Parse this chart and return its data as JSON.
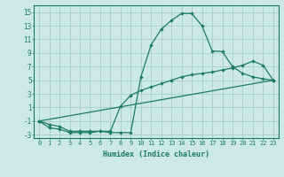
{
  "xlabel": "Humidex (Indice chaleur)",
  "bg_color": "#cce8e8",
  "grid_color": "#aacccc",
  "line_color": "#1a7a6a",
  "xlim": [
    -0.5,
    23.5
  ],
  "ylim": [
    -3.5,
    16.0
  ],
  "xticks": [
    0,
    1,
    2,
    3,
    4,
    5,
    6,
    7,
    8,
    9,
    10,
    11,
    12,
    13,
    14,
    15,
    16,
    17,
    18,
    19,
    20,
    21,
    22,
    23
  ],
  "yticks": [
    -3,
    -1,
    1,
    3,
    5,
    7,
    9,
    11,
    13,
    15
  ],
  "line1_x": [
    0,
    1,
    2,
    3,
    4,
    5,
    6,
    7,
    8,
    9,
    10,
    11,
    12,
    13,
    14,
    15,
    16,
    17,
    18,
    19,
    20,
    21,
    22,
    23
  ],
  "line1_y": [
    -1,
    -2,
    -2.2,
    -2.7,
    -2.7,
    -2.7,
    -2.5,
    -2.7,
    -2.7,
    -2.7,
    5.5,
    10.2,
    12.5,
    13.8,
    14.8,
    14.8,
    13.0,
    9.3,
    9.2,
    7.0,
    6.0,
    5.5,
    5.2,
    5.0
  ],
  "line2_x": [
    0,
    1,
    2,
    3,
    4,
    5,
    6,
    7,
    8,
    9,
    10,
    11,
    12,
    13,
    14,
    15,
    16,
    17,
    18,
    19,
    20,
    21,
    22,
    23
  ],
  "line2_y": [
    -1,
    -1.5,
    -1.8,
    -2.5,
    -2.5,
    -2.5,
    -2.5,
    -2.5,
    1.2,
    2.8,
    3.5,
    4.0,
    4.5,
    5.0,
    5.5,
    5.8,
    6.0,
    6.2,
    6.5,
    6.8,
    7.2,
    7.8,
    7.2,
    5.0
  ],
  "line3_x": [
    0,
    23
  ],
  "line3_y": [
    -1.0,
    5.0
  ]
}
